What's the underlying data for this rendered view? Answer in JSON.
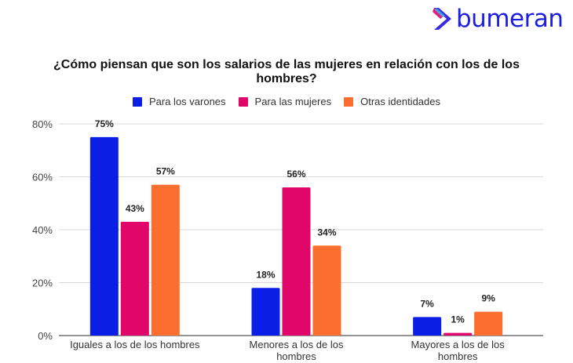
{
  "brand": {
    "name": "bumeran",
    "color": "#1e1ee0"
  },
  "chart_data": {
    "type": "bar",
    "title": "¿Cómo piensan que son los salarios de las mujeres en relación con los de los hombres?",
    "title_lines": [
      "¿Cómo piensan que son los salarios de las mujeres en relación con los de los",
      "hombres?"
    ],
    "categories": [
      "Iguales a los de los hombres",
      "Menores a los de los hombres",
      "Mayores a los de los hombres"
    ],
    "category_lines": [
      [
        "Iguales a los de los hombres"
      ],
      [
        "Menores a los de los",
        "hombres"
      ],
      [
        "Mayores a los de los",
        "hombres"
      ]
    ],
    "series": [
      {
        "name": "Para los varones",
        "color": "#0a1ee6",
        "values": [
          75,
          18,
          7
        ],
        "labels": [
          "75%",
          "18%",
          "7%"
        ]
      },
      {
        "name": "Para las mujeres",
        "color": "#e0066a",
        "values": [
          43,
          56,
          1
        ],
        "labels": [
          "43%",
          "56%",
          "1%"
        ]
      },
      {
        "name": "Otras identidades",
        "color": "#fb6e2e",
        "values": [
          57,
          34,
          9
        ],
        "labels": [
          "57%",
          "34%",
          "9%"
        ]
      }
    ],
    "yticks": [
      0,
      20,
      40,
      60,
      80
    ],
    "ytick_labels": [
      "0%",
      "20%",
      "40%",
      "60%",
      "80%"
    ],
    "ylim": [
      0,
      80
    ],
    "xlabel": "",
    "ylabel": "",
    "grid": true,
    "legend_position": "top-center"
  }
}
